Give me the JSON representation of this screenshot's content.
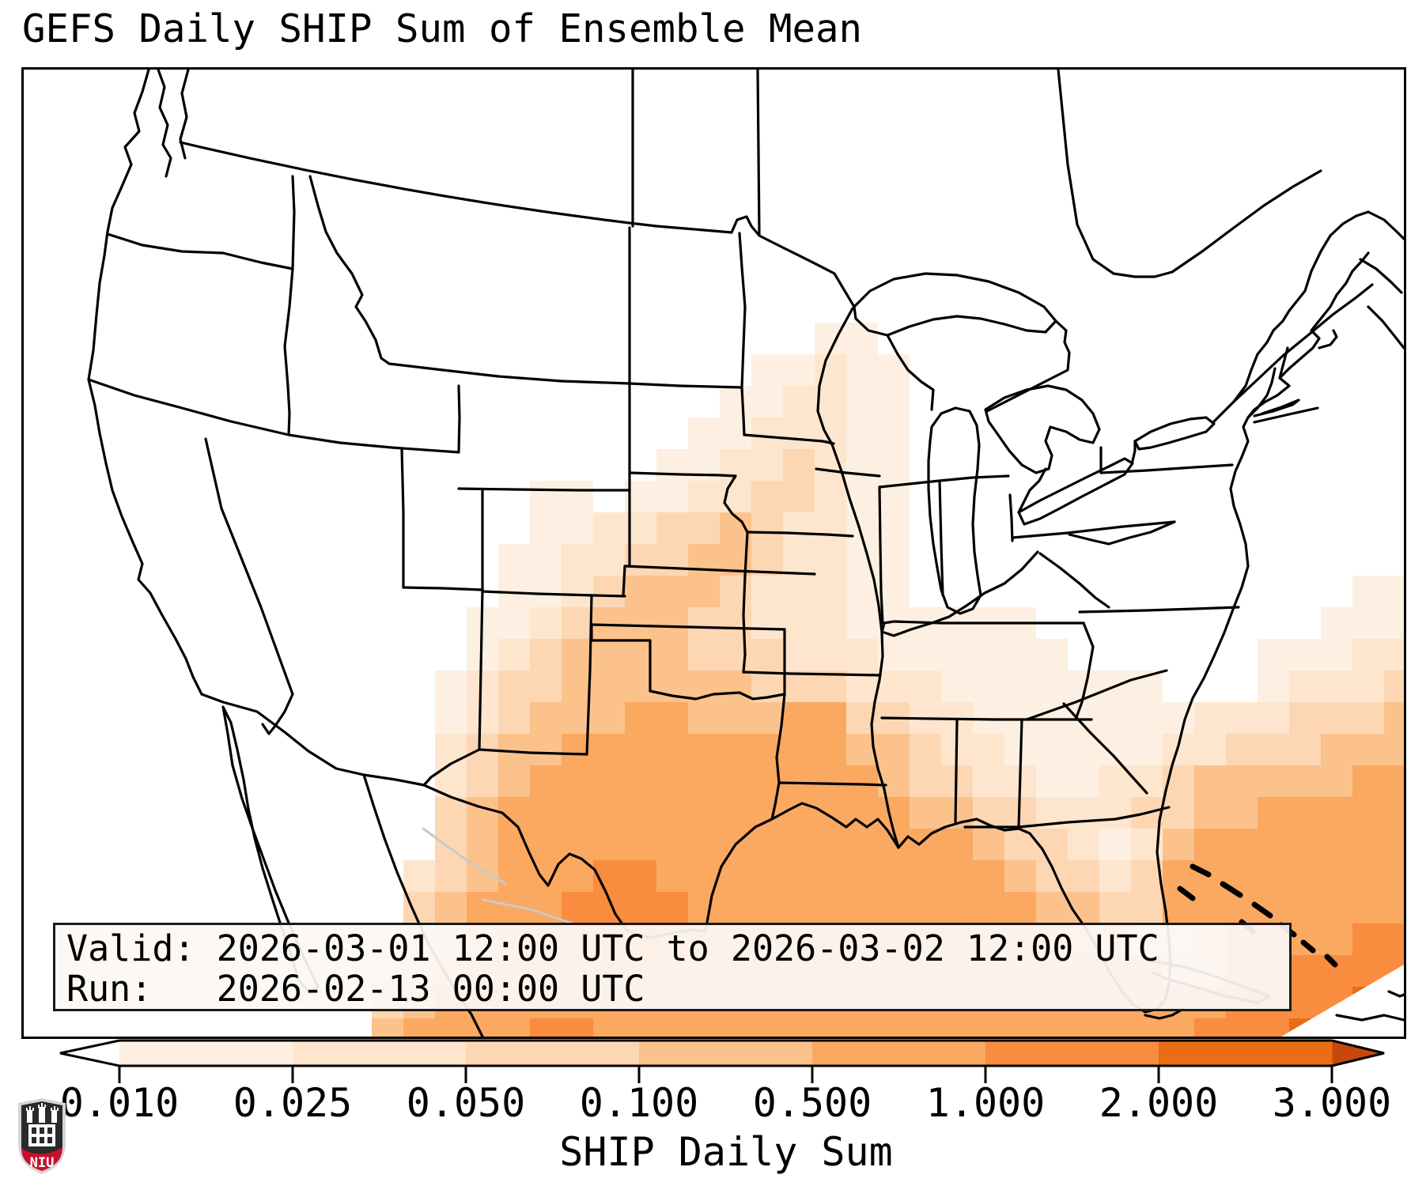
{
  "title": "GEFS Daily SHIP Sum of Ensemble Mean",
  "info_box": {
    "line1": "Valid: 2026-03-01 12:00 UTC to 2026-03-02 12:00 UTC",
    "line2": "Run:   2026-02-13 00:00 UTC"
  },
  "colorbar": {
    "ticks": [
      "0.010",
      "0.025",
      "0.050",
      "0.100",
      "0.500",
      "1.000",
      "2.000",
      "3.000"
    ],
    "axis_label": "SHIP Daily Sum",
    "under_color": "#ffffff",
    "over_color": "#c6490a",
    "segment_colors": [
      "#fdf0e2",
      "#fee6ce",
      "#fdd7b4",
      "#fcc28c",
      "#fba860",
      "#f98c3f",
      "#ea6d14"
    ],
    "outline_color": "#000000"
  },
  "map": {
    "land_color": "#ffffff",
    "border_color": "#000000",
    "neighbor_line_color": "#c9c9c9",
    "level_colors": [
      "#ffffff",
      "#fdf0e2",
      "#fee6ce",
      "#fdd7b4",
      "#fcc28c",
      "#fba860",
      "#f98c3f",
      "#ea6d14",
      "#c6490a"
    ],
    "heatmap": {
      "cols": 44,
      "rows": 31,
      "cell": 40,
      "grid": [
        "00000000000000000000000000000000000000000000",
        "00000000000000000000000000000000000000000000",
        "00000000000000000000000000000000000000000000",
        "00000000000000000000000000000000000000000000",
        "00000000000000000000000000000000000000000000",
        "00000000000000000000000000000000000000000000",
        "00000000000000000000000000000000000000000000",
        "00000000000000000000000000000000000000000000",
        "00000000000000000000000001100000000000000000",
        "00000000000000000000000112110000000000000000",
        "00000000000000000000001122110000000000000000",
        "00000000000000000000011222110000000000000000",
        "00000000000000000000112232110000000000000000",
        "00000000000000001101122332110000000000000000",
        "00000000000000001122334322110000000000000000",
        "00000000000000011223344322110000000000000000",
        "00000000000000011234443222110000000000000011",
        "00000000000000112344433222111111000000000111",
        "00000000000000123444433322211111100000011122",
        "00000000000001233444444333222111111100012223",
        "00000000000001234445544455332211111112223334",
        "00000000000002344555555555443221111122333444",
        "00000000000002345555555555543322112234444455",
        "00000000000003455555555555554433222334455555",
        "00000000000003455555555555555543321245555555",
        "00000000000023455566555555555554332355555555",
        "00000000000034555666655555555555443355555555",
        "00000000000023455566555555555555544223555566",
        "00000000000234555555555555555555555533556666",
        "00000000000345555555555555555555555555666677",
        "00000000000455556655555555555555555556667777"
      ]
    }
  },
  "logo": {
    "label": "NIU",
    "top_color": "#2a2a2a",
    "bottom_color": "#c8102e",
    "border_color": "#d3d4d6"
  },
  "chart_data": {
    "type": "heatmap",
    "title": "GEFS Daily SHIP Sum of Ensemble Mean",
    "colorbar_label": "SHIP Daily Sum",
    "levels": [
      0.01,
      0.025,
      0.05,
      0.1,
      0.5,
      1.0,
      2.0,
      3.0
    ],
    "colorbar_extend": "both",
    "valid": "2026-03-01 12:00 UTC to 2026-03-02 12:00 UTC",
    "run": "2026-02-13 00:00 UTC",
    "max_region_value_range": "0.5-2.0",
    "notes": "SHIP daily sum ensemble-mean field; maximum values (0.5-1+) over Texas, Louisiana, Gulf of Mexico, Florida Straits, Bahamas and western Atlantic; light values (0.01-0.1) extend north through Oklahoma, Kansas, Missouri and Illinois; zero over western and northern U.S."
  }
}
